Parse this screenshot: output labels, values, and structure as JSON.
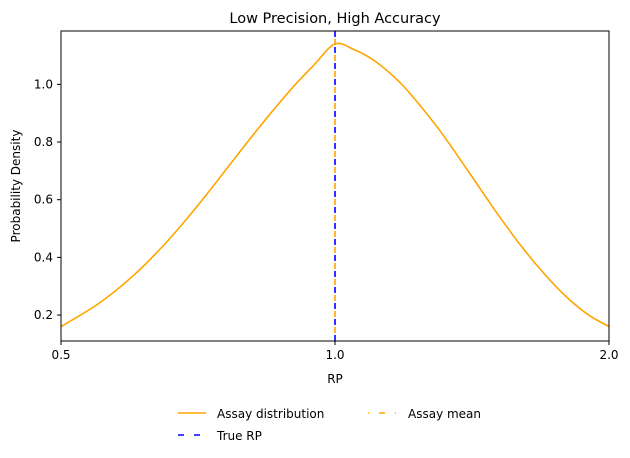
{
  "chart_data": {
    "type": "line",
    "title": "Low Precision, High Accuracy",
    "xlabel": "RP",
    "ylabel": "Probability Density",
    "xlim": [
      0.5,
      2.0
    ],
    "ylim": [
      0.11,
      1.185
    ],
    "x_scale": "log",
    "x_ticks": [
      0.5,
      1.0,
      2.0
    ],
    "x_tick_labels": [
      "0.5",
      "1.0",
      "2.0"
    ],
    "y_ticks": [
      0.2,
      0.4,
      0.6,
      0.8,
      1.0
    ],
    "y_tick_labels": [
      "0.2",
      "0.4",
      "0.6",
      "0.8",
      "1.0"
    ],
    "grid": false,
    "legend_position": "bottom-center, outside, 2 columns",
    "series": [
      {
        "name": "Assay distribution",
        "kind": "curve",
        "color": "#FFA500",
        "style": "solid",
        "x": [
          0.5,
          0.55,
          0.6,
          0.65,
          0.7,
          0.75,
          0.8,
          0.85,
          0.9,
          0.95,
          1.0,
          1.05,
          1.1,
          1.15,
          1.2,
          1.3,
          1.4,
          1.5,
          1.6,
          1.7,
          1.8,
          1.9,
          2.0
        ],
        "y": [
          0.16,
          0.24,
          0.336,
          0.446,
          0.564,
          0.683,
          0.797,
          0.9,
          0.992,
          1.07,
          1.14,
          1.12,
          1.086,
          1.038,
          0.98,
          0.845,
          0.7,
          0.562,
          0.441,
          0.341,
          0.26,
          0.2,
          0.16
        ]
      },
      {
        "name": "True RP",
        "kind": "vline",
        "x": 1.0,
        "color": "#0000FF",
        "style": "dashed"
      },
      {
        "name": "Assay mean",
        "kind": "vline",
        "x": 1.0,
        "color": "#FFA500",
        "style": "dashed"
      }
    ]
  }
}
